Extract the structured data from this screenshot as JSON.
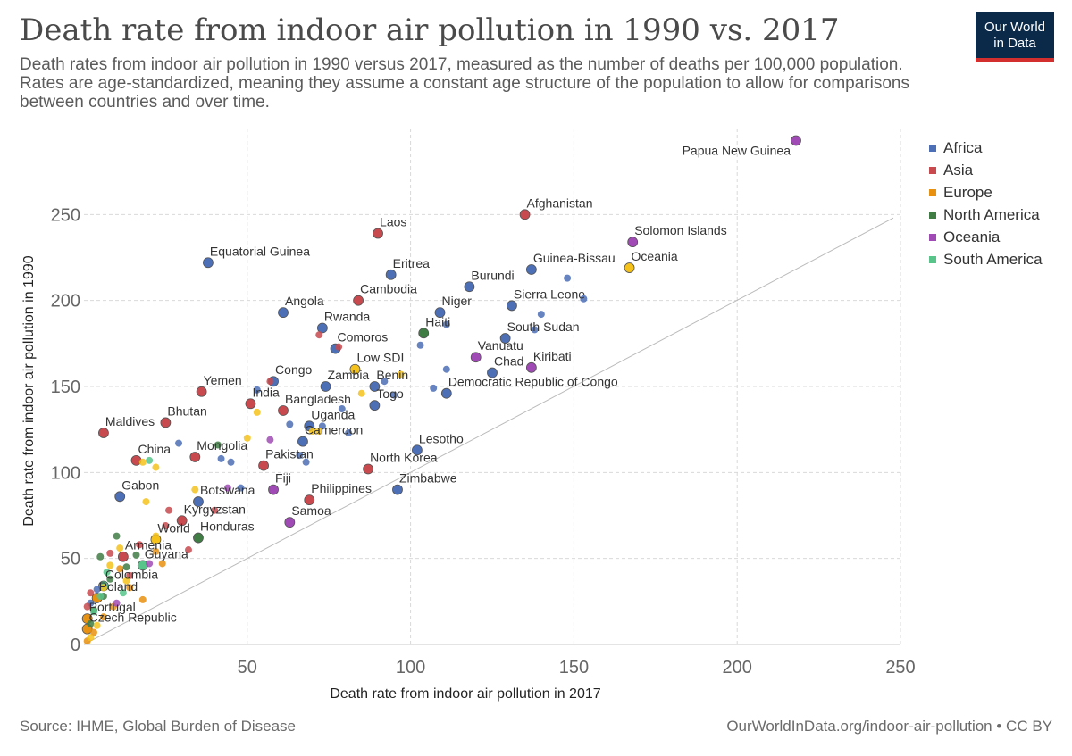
{
  "header": {
    "title": "Death rate from indoor air pollution in 1990 vs. 2017",
    "subtitle": "Death rates from indoor air pollution in 1990 versus 2017, measured as the number of deaths per 100,000 population. Rates are age-standardized, meaning they assume a constant age structure of the population to allow for comparisons between countries and over time.",
    "logo_line1": "Our World",
    "logo_line2": "in Data"
  },
  "footer": {
    "source": "Source: IHME, Global Burden of Disease",
    "url": "OurWorldInData.org/indoor-air-pollution • CC BY"
  },
  "colors": {
    "Africa": "#4c6fb5",
    "Asia": "#c84a4f",
    "Europe": "#e8900f",
    "North America": "#3f7d44",
    "Oceania": "#a04bb5",
    "South America": "#58c48a",
    "World": "#f5c21c",
    "grid": "#d9d9d9",
    "diagonal": "#bbbbbb",
    "logo_bg": "#0b2a4a",
    "logo_bar": "#d32f2f"
  },
  "chart_data": {
    "type": "scatter",
    "title": "Death rate from indoor air pollution in 1990 vs. 2017",
    "xlabel": "Death rate from indoor air pollution in 2017",
    "ylabel": "Death rate from indoor air pollution in 1990",
    "xlim": [
      0,
      250
    ],
    "ylim": [
      0,
      300
    ],
    "xticks": [
      50,
      100,
      150,
      200,
      250
    ],
    "yticks": [
      0,
      50,
      100,
      150,
      200,
      250
    ],
    "grid": true,
    "diagonal_reference_line": true,
    "legend_placement": "right",
    "legend": [
      "Africa",
      "Asia",
      "Europe",
      "North America",
      "Oceania",
      "South America"
    ],
    "points": [
      {
        "label": "Papua New Guinea",
        "region": "Oceania",
        "x": 218,
        "y": 293
      },
      {
        "label": "Afghanistan",
        "region": "Asia",
        "x": 135,
        "y": 250
      },
      {
        "label": "Laos",
        "region": "Asia",
        "x": 90,
        "y": 239
      },
      {
        "label": "Solomon Islands",
        "region": "Oceania",
        "x": 168,
        "y": 234
      },
      {
        "label": "Equatorial Guinea",
        "region": "Africa",
        "x": 38,
        "y": 222
      },
      {
        "label": "Oceania",
        "region": "World",
        "x": 167,
        "y": 219
      },
      {
        "label": "Guinea-Bissau",
        "region": "Africa",
        "x": 137,
        "y": 218
      },
      {
        "label": "Eritrea",
        "region": "Africa",
        "x": 94,
        "y": 215
      },
      {
        "label": "Burundi",
        "region": "Africa",
        "x": 118,
        "y": 208
      },
      {
        "label": "Cambodia",
        "region": "Asia",
        "x": 84,
        "y": 200
      },
      {
        "label": "Sierra Leone",
        "region": "Africa",
        "x": 131,
        "y": 197
      },
      {
        "label": "Niger",
        "region": "Africa",
        "x": 109,
        "y": 193
      },
      {
        "label": "Angola",
        "region": "Africa",
        "x": 61,
        "y": 193
      },
      {
        "label": "Rwanda",
        "region": "Africa",
        "x": 73,
        "y": 184
      },
      {
        "label": "Haiti",
        "region": "North America",
        "x": 104,
        "y": 181
      },
      {
        "label": "South Sudan",
        "region": "Africa",
        "x": 129,
        "y": 178
      },
      {
        "label": "Comoros",
        "region": "Africa",
        "x": 77,
        "y": 172
      },
      {
        "label": "Vanuatu",
        "region": "Oceania",
        "x": 120,
        "y": 167
      },
      {
        "label": "Chad",
        "region": "Africa",
        "x": 125,
        "y": 158
      },
      {
        "label": "Kiribati",
        "region": "Oceania",
        "x": 137,
        "y": 161
      },
      {
        "label": "Low SDI",
        "region": "World",
        "x": 83,
        "y": 160
      },
      {
        "label": "Congo",
        "region": "Africa",
        "x": 58,
        "y": 153
      },
      {
        "label": "Zambia",
        "region": "Africa",
        "x": 74,
        "y": 150
      },
      {
        "label": "Benin",
        "region": "Africa",
        "x": 89,
        "y": 150
      },
      {
        "label": "Democratic Republic of Congo",
        "region": "Africa",
        "x": 111,
        "y": 146
      },
      {
        "label": "Yemen",
        "region": "Asia",
        "x": 36,
        "y": 147
      },
      {
        "label": "Togo",
        "region": "Africa",
        "x": 89,
        "y": 139
      },
      {
        "label": "India",
        "region": "Asia",
        "x": 51,
        "y": 140
      },
      {
        "label": "Bangladesh",
        "region": "Asia",
        "x": 61,
        "y": 136
      },
      {
        "label": "Uganda",
        "region": "Africa",
        "x": 69,
        "y": 127
      },
      {
        "label": "Bhutan",
        "region": "Asia",
        "x": 25,
        "y": 129
      },
      {
        "label": "Maldives",
        "region": "Asia",
        "x": 6,
        "y": 123
      },
      {
        "label": "Cameroon",
        "region": "Africa",
        "x": 67,
        "y": 118
      },
      {
        "label": "Lesotho",
        "region": "Africa",
        "x": 102,
        "y": 113
      },
      {
        "label": "Mongolia",
        "region": "Asia",
        "x": 34,
        "y": 109
      },
      {
        "label": "China",
        "region": "Asia",
        "x": 16,
        "y": 107
      },
      {
        "label": "Pakistan",
        "region": "Asia",
        "x": 55,
        "y": 104
      },
      {
        "label": "North Korea",
        "region": "Asia",
        "x": 87,
        "y": 102
      },
      {
        "label": "Fiji",
        "region": "Oceania",
        "x": 58,
        "y": 90
      },
      {
        "label": "Zimbabwe",
        "region": "Africa",
        "x": 96,
        "y": 90
      },
      {
        "label": "Gabon",
        "region": "Africa",
        "x": 11,
        "y": 86
      },
      {
        "label": "Botswana",
        "region": "Africa",
        "x": 35,
        "y": 83
      },
      {
        "label": "Philippines",
        "region": "Asia",
        "x": 69,
        "y": 84
      },
      {
        "label": "Kyrgyzstan",
        "region": "Asia",
        "x": 30,
        "y": 72
      },
      {
        "label": "Samoa",
        "region": "Oceania",
        "x": 63,
        "y": 71
      },
      {
        "label": "World",
        "region": "World",
        "x": 22,
        "y": 61
      },
      {
        "label": "Honduras",
        "region": "North America",
        "x": 35,
        "y": 62
      },
      {
        "label": "Armenia",
        "region": "Asia",
        "x": 12,
        "y": 51
      },
      {
        "label": "Guyana",
        "region": "South America",
        "x": 18,
        "y": 46
      },
      {
        "label": "Colombia",
        "region": "South America",
        "x": 6,
        "y": 34
      },
      {
        "label": "Poland",
        "region": "Europe",
        "x": 4,
        "y": 27
      },
      {
        "label": "Portugal",
        "region": "Europe",
        "x": 1,
        "y": 15
      },
      {
        "label": "Czech Republic",
        "region": "Europe",
        "x": 1,
        "y": 9
      },
      {
        "label": "",
        "region": "Africa",
        "x": 148,
        "y": 213
      },
      {
        "label": "",
        "region": "Africa",
        "x": 153,
        "y": 201
      },
      {
        "label": "",
        "region": "Africa",
        "x": 140,
        "y": 192
      },
      {
        "label": "",
        "region": "Africa",
        "x": 138,
        "y": 183
      },
      {
        "label": "",
        "region": "Africa",
        "x": 111,
        "y": 186
      },
      {
        "label": "",
        "region": "Africa",
        "x": 103,
        "y": 174
      },
      {
        "label": "",
        "region": "Africa",
        "x": 111,
        "y": 160
      },
      {
        "label": "",
        "region": "Africa",
        "x": 107,
        "y": 149
      },
      {
        "label": "",
        "region": "Africa",
        "x": 92,
        "y": 153
      },
      {
        "label": "",
        "region": "Africa",
        "x": 95,
        "y": 145
      },
      {
        "label": "",
        "region": "Africa",
        "x": 53,
        "y": 148
      },
      {
        "label": "",
        "region": "Africa",
        "x": 79,
        "y": 137
      },
      {
        "label": "",
        "region": "Africa",
        "x": 81,
        "y": 123
      },
      {
        "label": "",
        "region": "Africa",
        "x": 73,
        "y": 127
      },
      {
        "label": "",
        "region": "Africa",
        "x": 63,
        "y": 128
      },
      {
        "label": "",
        "region": "Africa",
        "x": 42,
        "y": 108
      },
      {
        "label": "",
        "region": "Africa",
        "x": 45,
        "y": 106
      },
      {
        "label": "",
        "region": "Africa",
        "x": 29,
        "y": 117
      },
      {
        "label": "",
        "region": "Africa",
        "x": 66,
        "y": 110
      },
      {
        "label": "",
        "region": "Africa",
        "x": 68,
        "y": 106
      },
      {
        "label": "",
        "region": "Africa",
        "x": 48,
        "y": 91
      },
      {
        "label": "",
        "region": "Africa",
        "x": 4,
        "y": 32
      },
      {
        "label": "",
        "region": "Africa",
        "x": 2,
        "y": 24
      },
      {
        "label": "",
        "region": "Asia",
        "x": 72,
        "y": 180
      },
      {
        "label": "",
        "region": "Asia",
        "x": 78,
        "y": 173
      },
      {
        "label": "",
        "region": "Asia",
        "x": 57,
        "y": 153
      },
      {
        "label": "",
        "region": "Asia",
        "x": 26,
        "y": 78
      },
      {
        "label": "",
        "region": "Asia",
        "x": 40,
        "y": 78
      },
      {
        "label": "",
        "region": "Asia",
        "x": 25,
        "y": 69
      },
      {
        "label": "",
        "region": "Asia",
        "x": 32,
        "y": 55
      },
      {
        "label": "",
        "region": "Asia",
        "x": 8,
        "y": 53
      },
      {
        "label": "",
        "region": "Asia",
        "x": 2,
        "y": 30
      },
      {
        "label": "",
        "region": "Asia",
        "x": 1,
        "y": 22
      },
      {
        "label": "",
        "region": "Asia",
        "x": 14,
        "y": 40
      },
      {
        "label": "",
        "region": "Asia",
        "x": 17,
        "y": 58
      },
      {
        "label": "",
        "region": "Europe",
        "x": 22,
        "y": 54
      },
      {
        "label": "",
        "region": "Europe",
        "x": 11,
        "y": 44
      },
      {
        "label": "",
        "region": "Europe",
        "x": 14,
        "y": 33
      },
      {
        "label": "",
        "region": "Europe",
        "x": 18,
        "y": 26
      },
      {
        "label": "",
        "region": "Europe",
        "x": 9,
        "y": 22
      },
      {
        "label": "",
        "region": "Europe",
        "x": 6,
        "y": 16
      },
      {
        "label": "",
        "region": "Europe",
        "x": 3,
        "y": 7
      },
      {
        "label": "",
        "region": "Europe",
        "x": 1,
        "y": 2
      },
      {
        "label": "",
        "region": "Europe",
        "x": 24,
        "y": 47
      },
      {
        "label": "",
        "region": "North America",
        "x": 41,
        "y": 116
      },
      {
        "label": "",
        "region": "North America",
        "x": 10,
        "y": 63
      },
      {
        "label": "",
        "region": "North America",
        "x": 16,
        "y": 52
      },
      {
        "label": "",
        "region": "North America",
        "x": 5,
        "y": 51
      },
      {
        "label": "",
        "region": "North America",
        "x": 13,
        "y": 45
      },
      {
        "label": "",
        "region": "North America",
        "x": 8,
        "y": 38
      },
      {
        "label": "",
        "region": "North America",
        "x": 6,
        "y": 28
      },
      {
        "label": "",
        "region": "North America",
        "x": 3,
        "y": 20
      },
      {
        "label": "",
        "region": "North America",
        "x": 2,
        "y": 12
      },
      {
        "label": "",
        "region": "Oceania",
        "x": 57,
        "y": 119
      },
      {
        "label": "",
        "region": "Oceania",
        "x": 44,
        "y": 91
      },
      {
        "label": "",
        "region": "Oceania",
        "x": 20,
        "y": 47
      },
      {
        "label": "",
        "region": "Oceania",
        "x": 10,
        "y": 24
      },
      {
        "label": "",
        "region": "South America",
        "x": 20,
        "y": 107
      },
      {
        "label": "",
        "region": "South America",
        "x": 7,
        "y": 42
      },
      {
        "label": "",
        "region": "South America",
        "x": 12,
        "y": 30
      },
      {
        "label": "",
        "region": "South America",
        "x": 5,
        "y": 28
      },
      {
        "label": "",
        "region": "South America",
        "x": 3,
        "y": 19
      },
      {
        "label": "",
        "region": "World",
        "x": 50,
        "y": 120
      },
      {
        "label": "",
        "region": "World",
        "x": 53,
        "y": 135
      },
      {
        "label": "",
        "region": "World",
        "x": 70,
        "y": 124
      },
      {
        "label": "",
        "region": "World",
        "x": 72,
        "y": 124
      },
      {
        "label": "",
        "region": "World",
        "x": 85,
        "y": 146
      },
      {
        "label": "",
        "region": "World",
        "x": 97,
        "y": 157
      },
      {
        "label": "",
        "region": "World",
        "x": 18,
        "y": 106
      },
      {
        "label": "",
        "region": "World",
        "x": 22,
        "y": 103
      },
      {
        "label": "",
        "region": "World",
        "x": 34,
        "y": 90
      },
      {
        "label": "",
        "region": "World",
        "x": 19,
        "y": 83
      },
      {
        "label": "",
        "region": "World",
        "x": 22,
        "y": 63
      },
      {
        "label": "",
        "region": "World",
        "x": 11,
        "y": 56
      },
      {
        "label": "",
        "region": "World",
        "x": 8,
        "y": 46
      },
      {
        "label": "",
        "region": "World",
        "x": 13,
        "y": 37
      },
      {
        "label": "",
        "region": "World",
        "x": 6,
        "y": 33
      },
      {
        "label": "",
        "region": "World",
        "x": 4,
        "y": 11
      },
      {
        "label": "",
        "region": "World",
        "x": 2,
        "y": 4
      }
    ]
  }
}
